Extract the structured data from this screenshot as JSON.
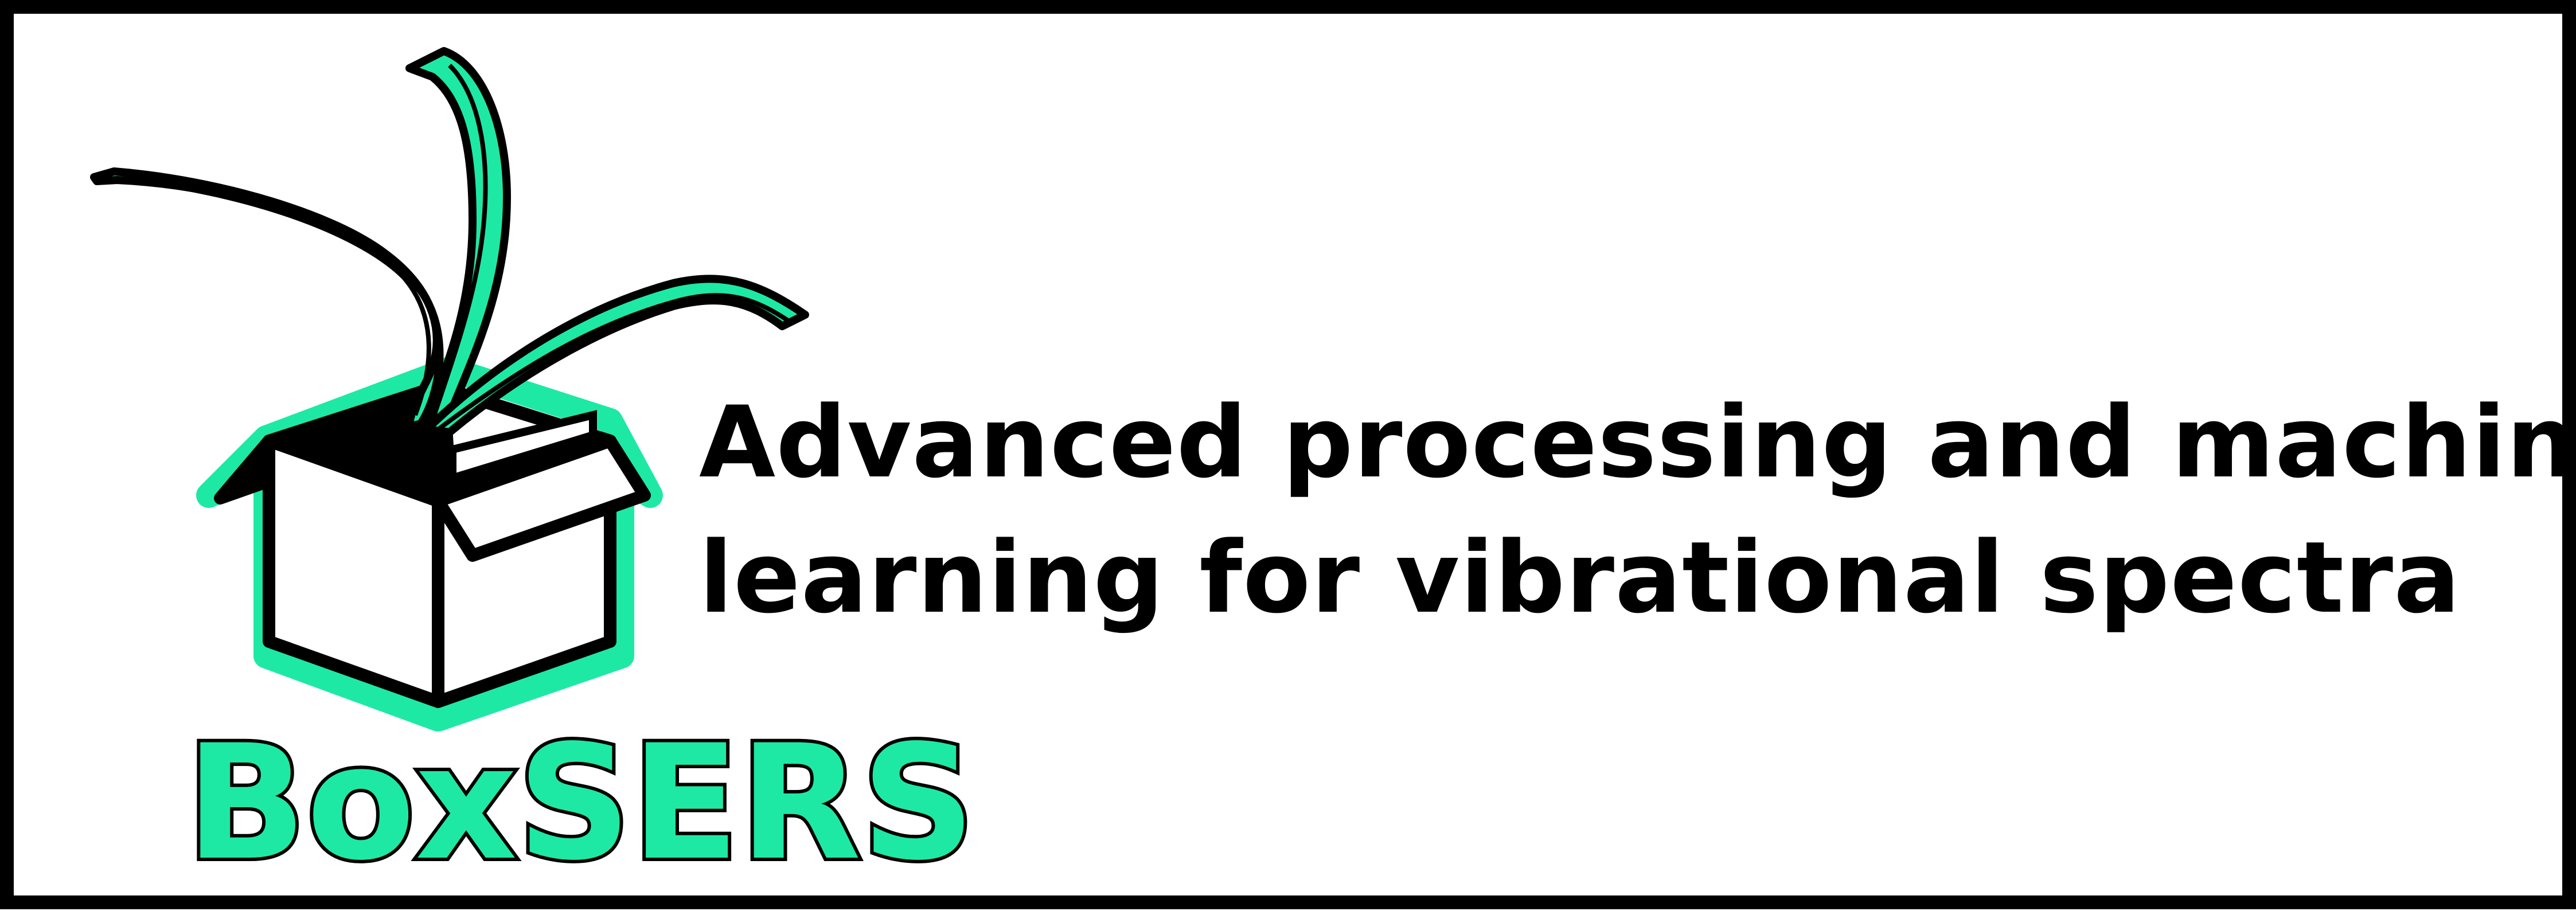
{
  "logo": {
    "wordmark": "BoxSERS",
    "accent_color": "#1de9a5",
    "outline_color": "#000000",
    "icon": "open-box-with-spectra-icon"
  },
  "tagline": {
    "line1": "Advanced processing and machine",
    "line2": "learning for vibrational spectra"
  }
}
